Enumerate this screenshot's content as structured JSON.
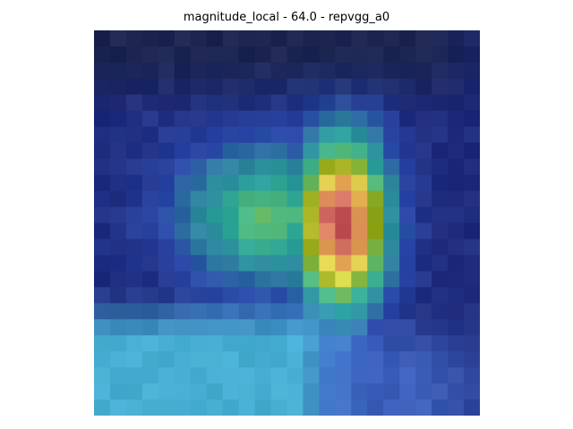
{
  "figure": {
    "title": "magnitude_local - 64.0 - repvgg_a0"
  },
  "image": {
    "description_name": "heatmap-overlay-image",
    "grid": 24,
    "colors": {
      "dark_navy": "#1b2448",
      "deep_blue": "#1e2a7a",
      "blue": "#2a47a8",
      "steel": "#2f5d8c",
      "light_blue": "#4f7fe0",
      "cyan": "#55d8ee",
      "teal": "#2aa49a",
      "green": "#5bbf7a",
      "olive": "#8ea313",
      "yellow": "#e3df52",
      "orange": "#e0a050",
      "salmon": "#d9766a",
      "red": "#b9484d",
      "dark_red": "#9a2e2a"
    }
  }
}
